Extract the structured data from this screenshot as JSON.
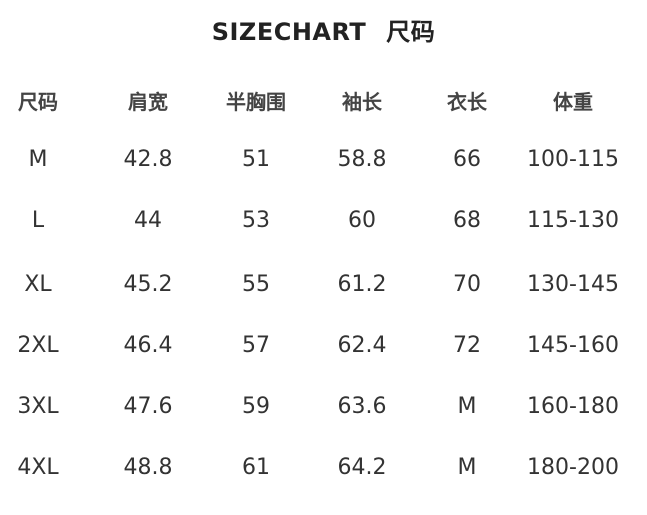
{
  "title": {
    "en": "SIZECHART",
    "cn": "尺码"
  },
  "table": {
    "headers": [
      "尺码",
      "肩宽",
      "半胸围",
      "袖长",
      "衣长",
      "体重"
    ],
    "rows": [
      [
        "M",
        "42.8",
        "51",
        "58.8",
        "66",
        "100-115"
      ],
      [
        "L",
        "44",
        "53",
        "60",
        "68",
        "115-130"
      ],
      [
        "XL",
        "45.2",
        "55",
        "61.2",
        "70",
        "130-145"
      ],
      [
        "2XL",
        "46.4",
        "57",
        "62.4",
        "72",
        "145-160"
      ],
      [
        "3XL",
        "47.6",
        "59",
        "63.6",
        "M",
        "160-180"
      ],
      [
        "4XL",
        "48.8",
        "61",
        "64.2",
        "M",
        "180-200"
      ]
    ]
  }
}
